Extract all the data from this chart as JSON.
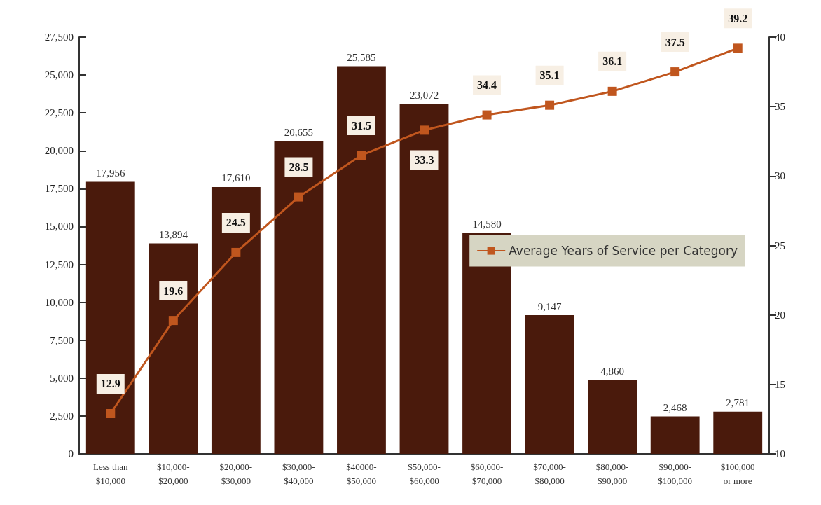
{
  "chart_data": {
    "type": "bar",
    "categories": [
      "Less than\n$10,000",
      "$10,000-\n$20,000",
      "$20,000-\n$30,000",
      "$30,000-\n$40,000",
      "$40000-\n$50,000",
      "$50,000-\n$60,000",
      "$60,000-\n$70,000",
      "$70,000-\n$80,000",
      "$80,000-\n$90,000",
      "$90,000-\n$100,000",
      "$100,000\nor more"
    ],
    "series": [
      {
        "color": "#4a1a0c",
        "values": [
          17956,
          13894,
          17610,
          20655,
          25585,
          23072,
          14580,
          9147,
          4860,
          2468,
          2781
        ],
        "value_labels": [
          "17,956",
          "13,894",
          "17,610",
          "20,655",
          "25,585",
          "23,072",
          "14,580",
          "9,147",
          "4,860",
          "2,468",
          "2,781"
        ]
      },
      {
        "type": "line",
        "name": "Average Years of Service per Category",
        "axis": "y2",
        "color": "#c0561e",
        "values": [
          12.9,
          19.6,
          24.5,
          28.5,
          31.5,
          33.3,
          34.4,
          35.1,
          36.1,
          37.5,
          39.2
        ],
        "value_labels": [
          "12.9",
          "19.6",
          "24.5",
          "28.5",
          "31.5",
          "33.3",
          "34.4",
          "35.1",
          "36.1",
          "37.5",
          "39.2"
        ]
      }
    ],
    "ylim": [
      0,
      27500
    ],
    "yticks": [
      0,
      {
        "value": 2500,
        "label": "2,500"
      },
      {
        "value": 5000,
        "label": "5,000"
      },
      {
        "value": 7500,
        "label": "7,500"
      },
      {
        "value": 10000,
        "label": "10,000"
      },
      {
        "value": 12500,
        "label": "12,500"
      },
      {
        "value": 15000,
        "label": "15,000"
      },
      {
        "value": 17500,
        "label": "17,500"
      },
      {
        "value": 20000,
        "label": "20,000"
      },
      {
        "value": 22500,
        "label": "22,500"
      },
      {
        "value": 25000,
        "label": "25,000"
      },
      {
        "value": 27500,
        "label": "27,500"
      }
    ],
    "y2lim": [
      10,
      40
    ],
    "y2ticks": [
      10,
      15,
      20,
      25,
      30,
      35,
      40
    ],
    "grid": false,
    "legend": "right",
    "marker": "square",
    "line_style": "solid"
  }
}
